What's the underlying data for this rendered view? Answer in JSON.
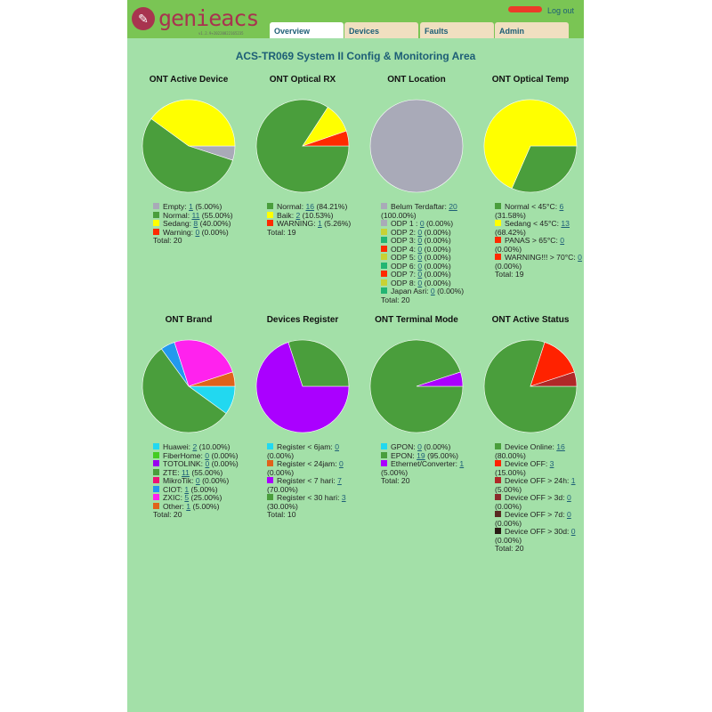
{
  "header": {
    "logo_text": "genieacs",
    "version": "v1.2.9+20220822165235",
    "logout": "Log out",
    "tabs": [
      {
        "label": "Overview",
        "active": true
      },
      {
        "label": "Devices"
      },
      {
        "label": "Faults"
      },
      {
        "label": "Admin"
      }
    ]
  },
  "page_title": "ACS-TR069 System II Config & Monitoring Area",
  "chart_data": [
    {
      "type": "pie",
      "title": "ONT Active Device",
      "total": "Total: 20",
      "items": [
        {
          "label": "Empty: ",
          "value": 1,
          "pct": "(5.00%)",
          "color": "#a9aab8"
        },
        {
          "label": "Normal: ",
          "value": 11,
          "pct": "(55.00%)",
          "color": "#4a9e3c"
        },
        {
          "label": "Sedang: ",
          "value": 8,
          "pct": "(40.00%)",
          "color": "#ffff00"
        },
        {
          "label": "Warning: ",
          "value": 0,
          "pct": "(0.00%)",
          "color": "#ff2a00"
        }
      ]
    },
    {
      "type": "pie",
      "title": "ONT Optical RX",
      "total": "Total: 19",
      "items": [
        {
          "label": "Normal: ",
          "value": 16,
          "pct": "(84.21%)",
          "color": "#4a9e3c"
        },
        {
          "label": "Baik: ",
          "value": 2,
          "pct": "(10.53%)",
          "color": "#ffff00"
        },
        {
          "label": "WARNING: ",
          "value": 1,
          "pct": "(5.26%)",
          "color": "#ff2a00"
        }
      ]
    },
    {
      "type": "pie",
      "title": "ONT Location",
      "total": "Total: 20",
      "items": [
        {
          "label": "Belum Terdaftar: ",
          "value": 20,
          "pct": "(100.00%)",
          "color": "#a9aab8"
        },
        {
          "label": "ODP 1 : ",
          "value": 0,
          "pct": "(0.00%)",
          "color": "#a9aab8"
        },
        {
          "label": "ODP 2: ",
          "value": 0,
          "pct": "(0.00%)",
          "color": "#c8d234"
        },
        {
          "label": "ODP 3: ",
          "value": 0,
          "pct": "(0.00%)",
          "color": "#22b573"
        },
        {
          "label": "ODP 4: ",
          "value": 0,
          "pct": "(0.00%)",
          "color": "#ff2a00"
        },
        {
          "label": "ODP 5: ",
          "value": 0,
          "pct": "(0.00%)",
          "color": "#c8d234"
        },
        {
          "label": "ODP 6: ",
          "value": 0,
          "pct": "(0.00%)",
          "color": "#22b573"
        },
        {
          "label": "ODP 7: ",
          "value": 0,
          "pct": "(0.00%)",
          "color": "#ff2a00"
        },
        {
          "label": "ODP 8: ",
          "value": 0,
          "pct": "(0.00%)",
          "color": "#c8d234"
        },
        {
          "label": "Japan Asri: ",
          "value": 0,
          "pct": "(0.00%)",
          "color": "#22b573"
        }
      ]
    },
    {
      "type": "pie",
      "title": "ONT Optical Temp",
      "total": "Total: 19",
      "items": [
        {
          "label": "Normal < 45°C: ",
          "value": 6,
          "pct": "(31.58%)",
          "color": "#4a9e3c"
        },
        {
          "label": "Sedang < 45°C: ",
          "value": 13,
          "pct": "(68.42%)",
          "color": "#ffff00"
        },
        {
          "label": "PANAS > 65°C: ",
          "value": 0,
          "pct": "(0.00%)",
          "color": "#ff2a00"
        },
        {
          "label": "WARNING!!! > 70°C: ",
          "value": 0,
          "pct": "(0.00%)",
          "color": "#ff2a00"
        }
      ]
    },
    {
      "type": "pie",
      "title": "ONT Brand",
      "total": "Total: 20",
      "items": [
        {
          "label": "Huawei: ",
          "value": 2,
          "pct": "(10.00%)",
          "color": "#22d8f0"
        },
        {
          "label": "FiberHome: ",
          "value": 0,
          "pct": "(0.00%)",
          "color": "#44cc22"
        },
        {
          "label": "TOTOLINK: ",
          "value": 0,
          "pct": "(0.00%)",
          "color": "#9900ee"
        },
        {
          "label": "ZTE: ",
          "value": 11,
          "pct": "(55.00%)",
          "color": "#4a9e3c"
        },
        {
          "label": "MikroTik: ",
          "value": 0,
          "pct": "(0.00%)",
          "color": "#ee1177"
        },
        {
          "label": "CIOT: ",
          "value": 1,
          "pct": "(5.00%)",
          "color": "#2299ee"
        },
        {
          "label": "ZXIC: ",
          "value": 5,
          "pct": "(25.00%)",
          "color": "#ff22ee"
        },
        {
          "label": "Other: ",
          "value": 1,
          "pct": "(5.00%)",
          "color": "#e0621a"
        }
      ]
    },
    {
      "type": "pie",
      "title": "Devices Register",
      "total": "Total: 10",
      "items": [
        {
          "label": "Register < 6jam: ",
          "value": 0,
          "pct": "(0.00%)",
          "color": "#22d8f0"
        },
        {
          "label": "Register < 24jam: ",
          "value": 0,
          "pct": "(0.00%)",
          "color": "#e0621a"
        },
        {
          "label": "Register < 7 hari: ",
          "value": 7,
          "pct": "(70.00%)",
          "color": "#aa00ff"
        },
        {
          "label": "Register < 30 hari: ",
          "value": 3,
          "pct": "(30.00%)",
          "color": "#4a9e3c"
        }
      ]
    },
    {
      "type": "pie",
      "title": "ONT Terminal Mode",
      "total": "Total: 20",
      "items": [
        {
          "label": "GPON: ",
          "value": 0,
          "pct": "(0.00%)",
          "color": "#22d8f0"
        },
        {
          "label": "EPON: ",
          "value": 19,
          "pct": "(95.00%)",
          "color": "#4a9e3c"
        },
        {
          "label": "Ethernet/Converter: ",
          "value": 1,
          "pct": "(5.00%)",
          "color": "#aa00ff"
        }
      ]
    },
    {
      "type": "pie",
      "title": "ONT Active Status",
      "total": "Total: 20",
      "items": [
        {
          "label": "Device Online: ",
          "value": 16,
          "pct": "(80.00%)",
          "color": "#4a9e3c"
        },
        {
          "label": "Device OFF: ",
          "value": 3,
          "pct": "(15.00%)",
          "color": "#ff2200"
        },
        {
          "label": "Device OFF > 24h: ",
          "value": 1,
          "pct": "(5.00%)",
          "color": "#b02828"
        },
        {
          "label": "Device OFF > 3d: ",
          "value": 0,
          "pct": "(0.00%)",
          "color": "#8a2c2c"
        },
        {
          "label": "Device OFF > 7d: ",
          "value": 0,
          "pct": "(0.00%)",
          "color": "#5a2a22"
        },
        {
          "label": "Device OFF > 30d: ",
          "value": 0,
          "pct": "(0.00%)",
          "color": "#2a1a14"
        }
      ]
    }
  ]
}
